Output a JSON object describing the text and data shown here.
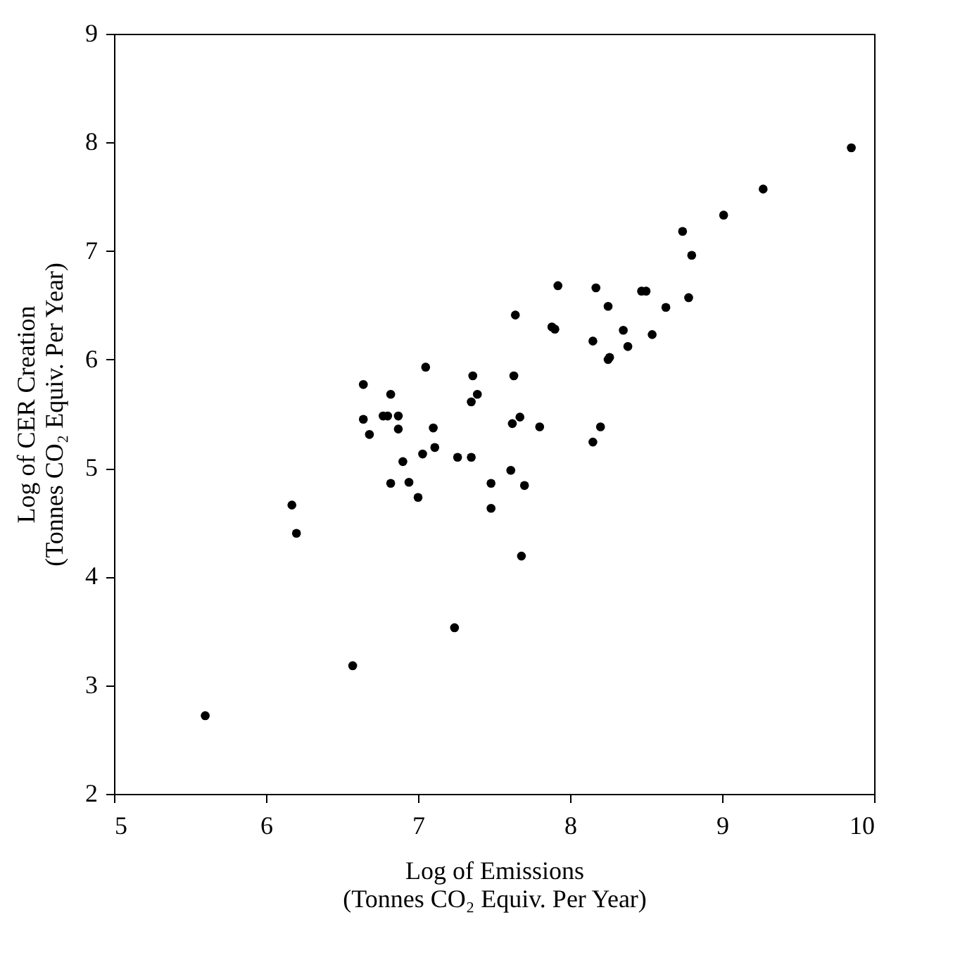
{
  "chart_data": {
    "type": "scatter",
    "xlabel": "Log of Emissions\n(Tonnes CO₂ Equiv. Per Year)",
    "ylabel": "Log of CER Creation\n(Tonnes CO₂ Equiv. Per Year)",
    "x": [
      5.6,
      6.57,
      7.24,
      6.17,
      6.2,
      6.64,
      7.05,
      7.36,
      6.82,
      7.39,
      7.35,
      6.64,
      6.77,
      6.8,
      6.87,
      6.68,
      6.87,
      7.1,
      7.11,
      7.03,
      6.9,
      7.26,
      7.35,
      6.82,
      6.94,
      7.0,
      7.48,
      7.48,
      9.27,
      9.01,
      8.74,
      8.8,
      7.92,
      8.17,
      8.47,
      8.5,
      8.78,
      8.25,
      8.63,
      7.64,
      7.88,
      7.9,
      8.35,
      8.15,
      8.54,
      8.38,
      8.25,
      8.26,
      7.63,
      7.67,
      7.62,
      7.8,
      8.2,
      8.15,
      7.61,
      7.7,
      7.68,
      9.85
    ],
    "values": [
      2.72,
      3.18,
      3.53,
      4.66,
      4.4,
      5.77,
      5.93,
      5.85,
      5.68,
      5.68,
      5.61,
      5.45,
      5.48,
      5.48,
      5.48,
      5.31,
      5.36,
      5.37,
      5.19,
      5.13,
      5.06,
      5.1,
      5.1,
      4.86,
      4.87,
      4.73,
      4.86,
      4.63,
      7.57,
      7.33,
      7.18,
      6.96,
      6.68,
      6.66,
      6.63,
      6.63,
      6.57,
      6.49,
      6.48,
      6.41,
      6.3,
      6.28,
      6.27,
      6.17,
      6.23,
      6.12,
      6.0,
      6.02,
      5.85,
      5.47,
      5.41,
      5.38,
      5.38,
      5.24,
      4.98,
      4.84,
      4.19,
      7.95
    ],
    "color": "#000000",
    "marker": "circle",
    "xlim": [
      5,
      10
    ],
    "xticks": [
      5,
      6,
      7,
      8,
      9,
      10
    ],
    "ylim": [
      2,
      9
    ],
    "yticks": [
      2,
      3,
      4,
      5,
      6,
      7,
      8,
      9
    ],
    "grid": false
  }
}
